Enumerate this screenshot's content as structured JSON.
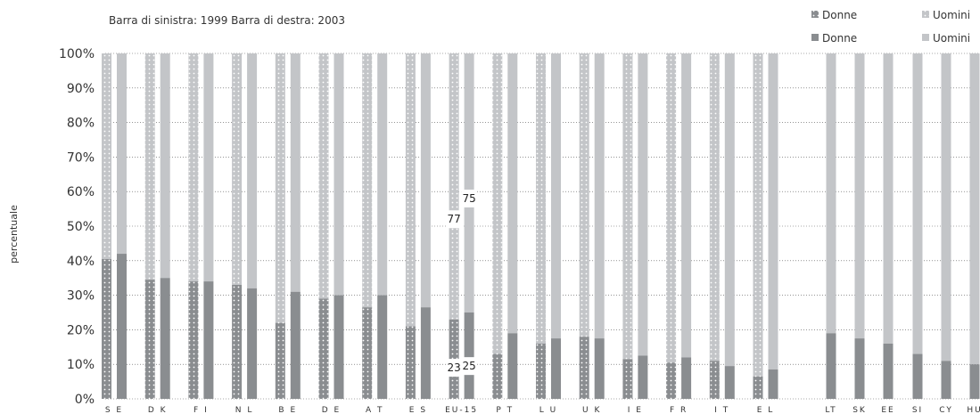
{
  "chart_data": {
    "type": "bar",
    "stacked": true,
    "percent_stacked": true,
    "subtitle": "Barra di sinistra: 1999  Barra di destra: 2003",
    "ylabel": "percentuale",
    "ylim": [
      0,
      100
    ],
    "yticks": [
      "0%",
      "10%",
      "20%",
      "30%",
      "40%",
      "50%",
      "60%",
      "70%",
      "80%",
      "90%",
      "100%"
    ],
    "grid": true,
    "legend_position": "top-right",
    "legend": [
      {
        "label": "Donne",
        "year": "1999",
        "pattern": "dotted"
      },
      {
        "label": "Uomini",
        "year": "1999",
        "pattern": "dotted"
      },
      {
        "label": "Donne",
        "year": "2003",
        "pattern": "solid"
      },
      {
        "label": "Uomini",
        "year": "2003",
        "pattern": "solid"
      }
    ],
    "categories": [
      "S E",
      "D K",
      "F I",
      "N L",
      "B E",
      "D E",
      "A T",
      "E S",
      "EU-15",
      "P T",
      "L U",
      "U K",
      "I E",
      "F R",
      "I T",
      "E L",
      "LT",
      "SK",
      "EE",
      "SI",
      "CY",
      "HU"
    ],
    "series": [
      {
        "name": "Donne",
        "year": "1999",
        "values": [
          40.5,
          34.5,
          34,
          33,
          22,
          29,
          26.5,
          21,
          23,
          13,
          16,
          18,
          11.5,
          10.5,
          11,
          6.5,
          null,
          null,
          null,
          null,
          null,
          null
        ]
      },
      {
        "name": "Donne",
        "year": "2003",
        "values": [
          42,
          35,
          34,
          32,
          31,
          30,
          30,
          26.5,
          25,
          19,
          17.5,
          17.5,
          12.5,
          12,
          9.5,
          8.5,
          19,
          17.5,
          16,
          13,
          11,
          10
        ]
      }
    ],
    "data_labels": [
      {
        "category": "EU-15",
        "year": "1999",
        "donne": "23",
        "uomini": "77"
      },
      {
        "category": "EU-15",
        "year": "2003",
        "donne": "25",
        "uomini": "75"
      }
    ],
    "colors": {
      "donne": "#8a8d90",
      "uomini": "#c3c5c8",
      "dots": "#ffffff",
      "grid": "#555555"
    }
  }
}
